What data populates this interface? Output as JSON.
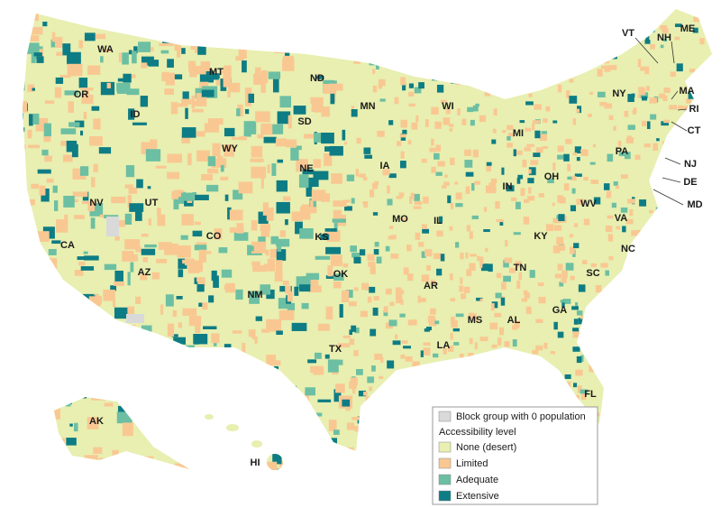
{
  "map": {
    "states": [
      "WA",
      "OR",
      "ID",
      "MT",
      "ND",
      "SD",
      "WY",
      "NE",
      "NV",
      "UT",
      "CO",
      "KS",
      "CA",
      "AZ",
      "NM",
      "OK",
      "TX",
      "MN",
      "WI",
      "IA",
      "IL",
      "MO",
      "AR",
      "LA",
      "MS",
      "AL",
      "TN",
      "KY",
      "IN",
      "OH",
      "MI",
      "WV",
      "VA",
      "NC",
      "SC",
      "GA",
      "FL",
      "PA",
      "NY",
      "VT",
      "NH",
      "ME",
      "MA",
      "RI",
      "CT",
      "NJ",
      "DE",
      "MD",
      "AK",
      "HI"
    ],
    "legend": {
      "no_population": "Block group with 0 population",
      "title": "Accessibility level",
      "items": [
        "None (desert)",
        "Limited",
        "Adequate",
        "Extensive"
      ]
    }
  }
}
